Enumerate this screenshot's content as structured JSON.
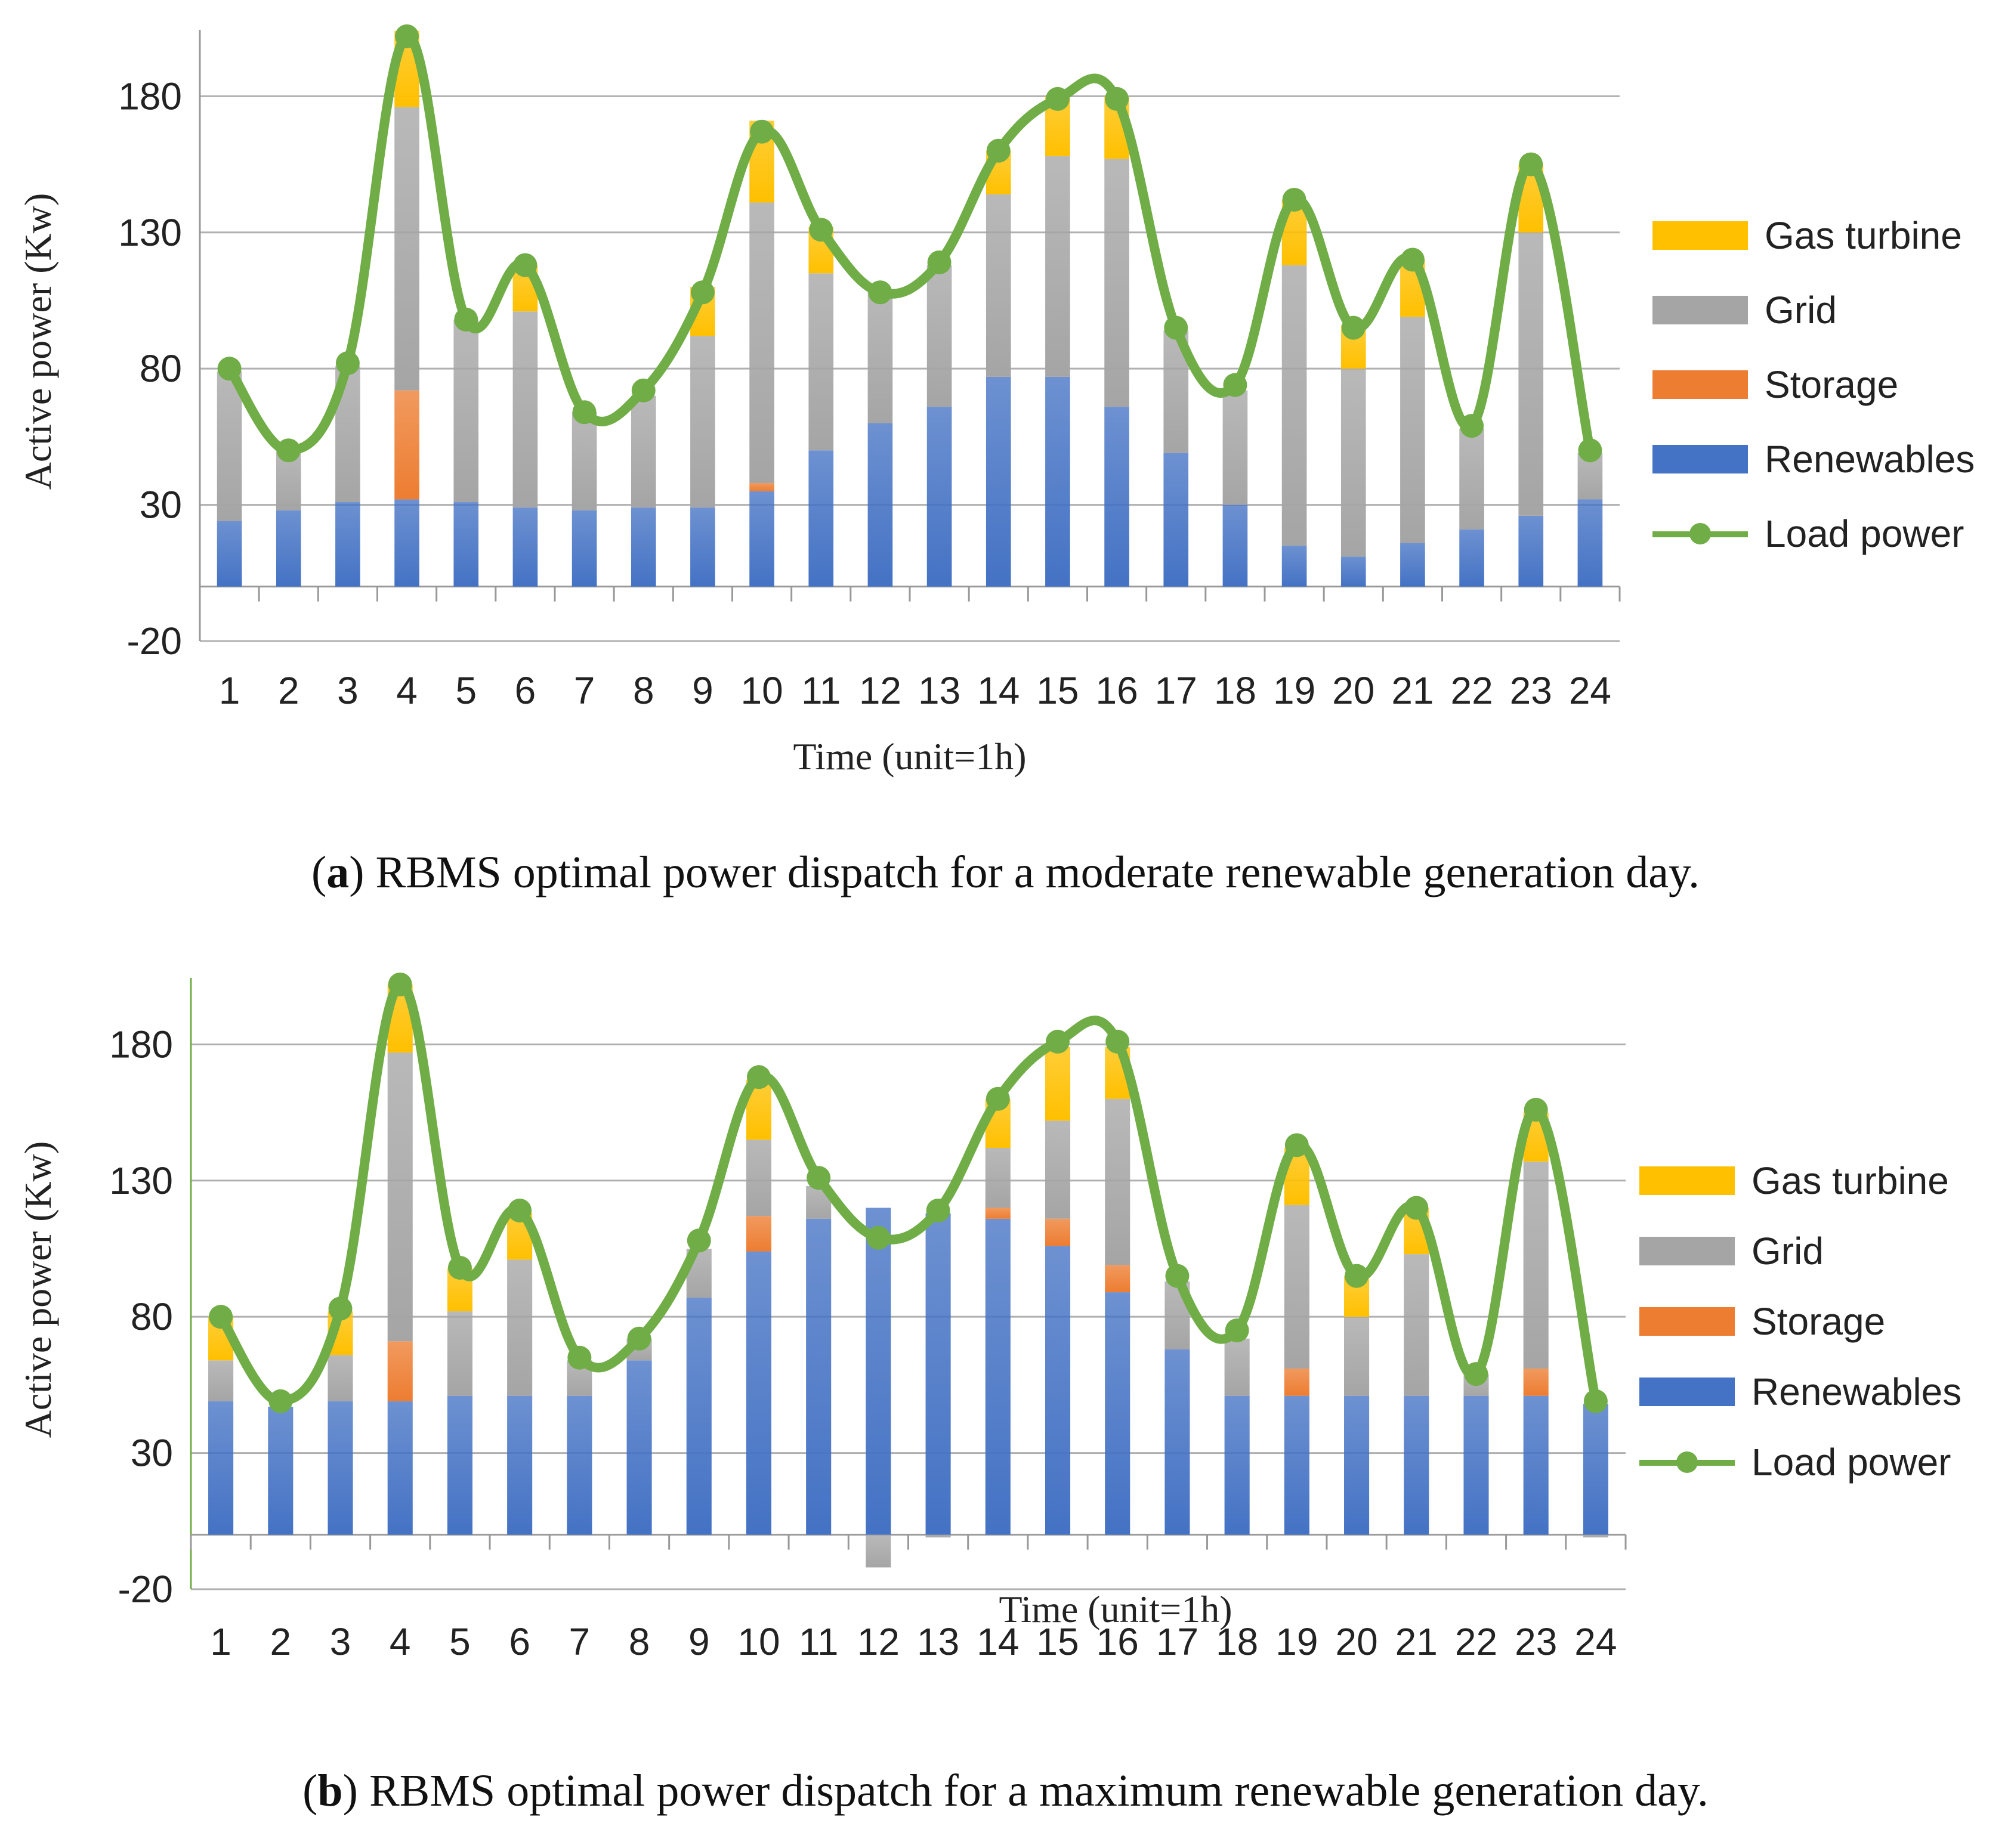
{
  "chart_data": [
    {
      "type": "bar",
      "stacked": true,
      "caption_label": "a",
      "caption_text": ") RBMS optimal power dispatch for a moderate renewable generation day.",
      "caption_open": "(",
      "xlabel": "Time (unit=1h)",
      "ylabel": "Active power (Kw)",
      "ylim": [
        -20,
        200
      ],
      "yticks": [
        -20,
        30,
        80,
        130,
        180
      ],
      "grid": true,
      "legend_position": "right",
      "categories": [
        "1",
        "2",
        "3",
        "4",
        "5",
        "6",
        "7",
        "8",
        "9",
        "10",
        "11",
        "12",
        "13",
        "14",
        "15",
        "16",
        "17",
        "18",
        "19",
        "20",
        "21",
        "22",
        "23",
        "24"
      ],
      "series": [
        {
          "name": "Renewables",
          "color": "#4472c4",
          "values": [
            24,
            28,
            31,
            32,
            31,
            29,
            28,
            29,
            29,
            35,
            50,
            60,
            66,
            77,
            77,
            66,
            49,
            30,
            15,
            11,
            16,
            21,
            26,
            32
          ]
        },
        {
          "name": "Storage",
          "color": "#ed7d31",
          "values": [
            0,
            0,
            0,
            40,
            0,
            0,
            0,
            0,
            0,
            3,
            0,
            0,
            0,
            0,
            0,
            0,
            0,
            0,
            0,
            0,
            0,
            0,
            0,
            0
          ]
        },
        {
          "name": "Grid",
          "color": "#a5a5a5",
          "values": [
            55,
            22,
            50,
            104,
            67,
            72,
            36,
            41,
            63,
            103,
            65,
            49,
            52,
            67,
            81,
            91,
            45,
            42,
            103,
            69,
            83,
            37,
            104,
            17
          ]
        },
        {
          "name": "Gas turbine",
          "color": "#ffc000",
          "values": [
            0,
            0,
            0,
            28,
            0,
            17,
            0,
            0,
            18,
            30,
            17,
            0,
            0,
            16,
            22,
            23,
            0,
            0,
            24,
            16,
            21,
            0,
            25,
            0
          ]
        }
      ],
      "line": {
        "name": "Load power",
        "color": "#70ad47",
        "values": [
          80,
          50,
          82,
          202,
          98,
          118,
          64,
          72,
          108,
          167,
          131,
          108,
          119,
          160,
          179,
          179,
          95,
          74,
          142,
          95,
          120,
          59,
          155,
          50
        ]
      }
    },
    {
      "type": "bar",
      "stacked": true,
      "caption_label": "b",
      "caption_text": ") RBMS optimal power dispatch for a maximum renewable generation day.",
      "caption_open": "(",
      "xlabel": "Time (unit=1h)",
      "ylabel": "Active power (Kw)",
      "ylim": [
        -20,
        200
      ],
      "yticks": [
        -20,
        30,
        80,
        130,
        180
      ],
      "grid": true,
      "legend_position": "right",
      "categories": [
        "1",
        "2",
        "3",
        "4",
        "5",
        "6",
        "7",
        "8",
        "9",
        "10",
        "11",
        "12",
        "13",
        "14",
        "15",
        "16",
        "17",
        "18",
        "19",
        "20",
        "21",
        "22",
        "23",
        "24"
      ],
      "series": [
        {
          "name": "Renewables",
          "color": "#4472c4",
          "values": [
            49,
            47,
            49,
            49,
            51,
            51,
            51,
            64,
            87,
            104,
            116,
            120,
            118,
            116,
            106,
            89,
            68,
            51,
            51,
            51,
            51,
            51,
            51,
            48
          ]
        },
        {
          "name": "Storage",
          "color": "#ed7d31",
          "values": [
            0,
            0,
            0,
            22,
            0,
            0,
            0,
            0,
            0,
            13,
            0,
            0,
            0,
            4,
            10,
            10,
            0,
            0,
            10,
            0,
            0,
            0,
            10,
            0
          ]
        },
        {
          "name": "Grid",
          "color": "#a5a5a5",
          "values": [
            15,
            0,
            17,
            106,
            31,
            50,
            13,
            8,
            18,
            28,
            12,
            -12,
            -1,
            22,
            36,
            61,
            25,
            21,
            60,
            29,
            52,
            8,
            76,
            -1
          ]
        },
        {
          "name": "Gas turbine",
          "color": "#ffc000",
          "values": [
            16,
            0,
            16,
            25,
            16,
            17,
            0,
            0,
            0,
            22,
            0,
            0,
            0,
            18,
            27,
            19,
            0,
            0,
            21,
            15,
            17,
            0,
            18,
            0
          ]
        }
      ],
      "line": {
        "name": "Load power",
        "color": "#70ad47",
        "values": [
          80,
          49,
          83,
          202,
          98,
          119,
          65,
          72,
          108,
          168,
          131,
          109,
          119,
          160,
          181,
          181,
          95,
          75,
          143,
          95,
          120,
          59,
          156,
          49
        ]
      }
    }
  ],
  "legend": {
    "gas_turbine": "Gas turbine",
    "grid": "Grid",
    "storage": "Storage",
    "renewables": "Renewables",
    "load_power": "Load power"
  },
  "colors": {
    "gas_turbine": "#ffc000",
    "grid": "#a5a5a5",
    "storage": "#ed7d31",
    "renewables": "#4472c4",
    "load_power": "#70ad47"
  }
}
